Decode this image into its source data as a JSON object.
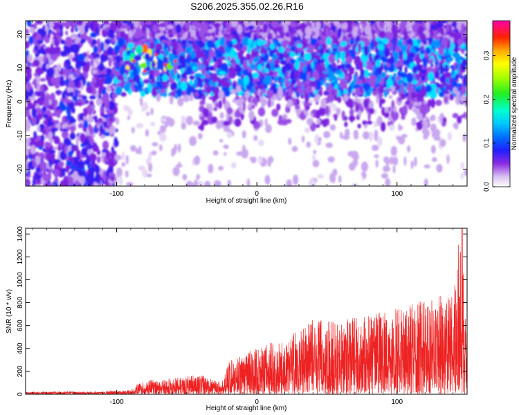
{
  "title": "S206.2025.355.02.26.R16",
  "chart_data": [
    {
      "type": "heatmap",
      "xlabel": "Height of straight line (km)",
      "ylabel": "Frequency (Hz)",
      "xlim": [
        -165,
        150
      ],
      "ylim": [
        -25,
        24
      ],
      "x_ticks": [
        -100,
        0,
        100
      ],
      "y_ticks": [
        -20,
        -10,
        0,
        10,
        20
      ],
      "colorbar": {
        "label": "Normalized spectral amplitude",
        "range": [
          0,
          0.38
        ],
        "ticks": [
          0.0,
          0.1,
          0.2,
          0.3
        ]
      },
      "features": [
        {
          "x_range": [
            -165,
            -100
          ],
          "y_range": [
            -25,
            24
          ],
          "level": 0.06
        },
        {
          "x_range": [
            -100,
            150
          ],
          "y_range": [
            2,
            18
          ],
          "level": 0.14
        },
        {
          "x_range": [
            -100,
            150
          ],
          "y_range": [
            -25,
            2
          ],
          "level": 0.0
        }
      ]
    },
    {
      "type": "line",
      "xlabel": "Height of straight line (km)",
      "ylabel": "SNR (10 * v/v)",
      "xlim": [
        -165,
        150
      ],
      "ylim": [
        0,
        1450
      ],
      "x_ticks": [
        -100,
        0,
        100
      ],
      "y_ticks": [
        0,
        200,
        400,
        600,
        800,
        1000,
        1200,
        1400
      ],
      "color": "#ee2222",
      "series": [
        {
          "x": [
            -165,
            -150,
            -130,
            -110,
            -100,
            -90,
            -85,
            -80,
            -70,
            -60,
            -50,
            -40,
            -35,
            -30,
            -25,
            -20,
            -15,
            -10,
            -5,
            0,
            10,
            20,
            30,
            40,
            50,
            60,
            70,
            80,
            90,
            100,
            110,
            120,
            130,
            140,
            145,
            148,
            150
          ],
          "y": [
            20,
            25,
            25,
            25,
            30,
            35,
            90,
            120,
            130,
            140,
            160,
            170,
            150,
            120,
            110,
            300,
            330,
            340,
            380,
            400,
            450,
            450,
            600,
            650,
            660,
            650,
            680,
            700,
            720,
            750,
            800,
            850,
            870,
            880,
            1450,
            900,
            400
          ],
          "x_peak": [
            -165,
            -150,
            -130,
            -110,
            -100,
            -90,
            -85,
            -80,
            -70,
            -60,
            -50,
            -40,
            -35,
            -30,
            -25,
            -20,
            -15,
            -10,
            -5,
            0,
            10,
            20,
            30,
            40,
            50,
            60,
            70,
            80,
            90,
            100,
            110,
            120,
            130,
            140,
            145,
            148,
            150
          ]
        }
      ]
    }
  ]
}
